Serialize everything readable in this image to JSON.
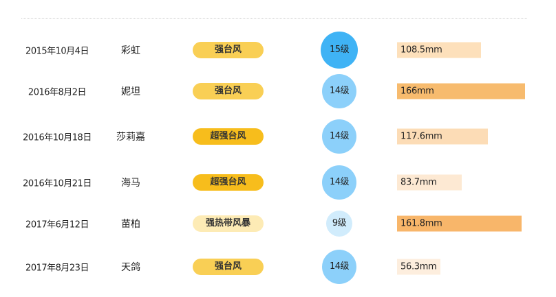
{
  "rows": [
    {
      "date": "2015年10月4日",
      "name": "彩虹",
      "category": "强台风",
      "category_color": "#f9cf55",
      "level": "15级",
      "level_color": "#3fb3f5",
      "rainfall": "108.5mm",
      "rainfall_value": 108.5,
      "bar_color": "#fde0bb"
    },
    {
      "date": "2016年8月2日",
      "name": "妮坦",
      "category": "强台风",
      "category_color": "#f9cf55",
      "level": "14级",
      "level_color": "#8cd0fa",
      "rainfall": "166mm",
      "rainfall_value": 166,
      "bar_color": "#f7bb6e"
    },
    {
      "date": "2016年10月18日",
      "name": "莎莉嘉",
      "category": "超强台风",
      "category_color": "#f7bd1c",
      "level": "14级",
      "level_color": "#8cd0fa",
      "rainfall": "117.6mm",
      "rainfall_value": 117.6,
      "bar_color": "#fcdcb6"
    },
    {
      "date": "2016年10月21日",
      "name": "海马",
      "category": "超强台风",
      "category_color": "#f7bd1c",
      "level": "14级",
      "level_color": "#8cd0fa",
      "rainfall": "83.7mm",
      "rainfall_value": 83.7,
      "bar_color": "#fde9d3"
    },
    {
      "date": "2017年6月12日",
      "name": "苗柏",
      "category": "强热带风暴",
      "category_color": "#fdebb5",
      "level": "9级",
      "level_color": "#d1ecfc",
      "rainfall": "161.8mm",
      "rainfall_value": 161.8,
      "bar_color": "#f8b66a"
    },
    {
      "date": "2017年8月23日",
      "name": "天鸽",
      "category": "强台风",
      "category_color": "#f9cf55",
      "level": "14级",
      "level_color": "#8cd0fa",
      "rainfall": "56.3mm",
      "rainfall_value": 56.3,
      "bar_color": "#fdeede"
    }
  ]
}
